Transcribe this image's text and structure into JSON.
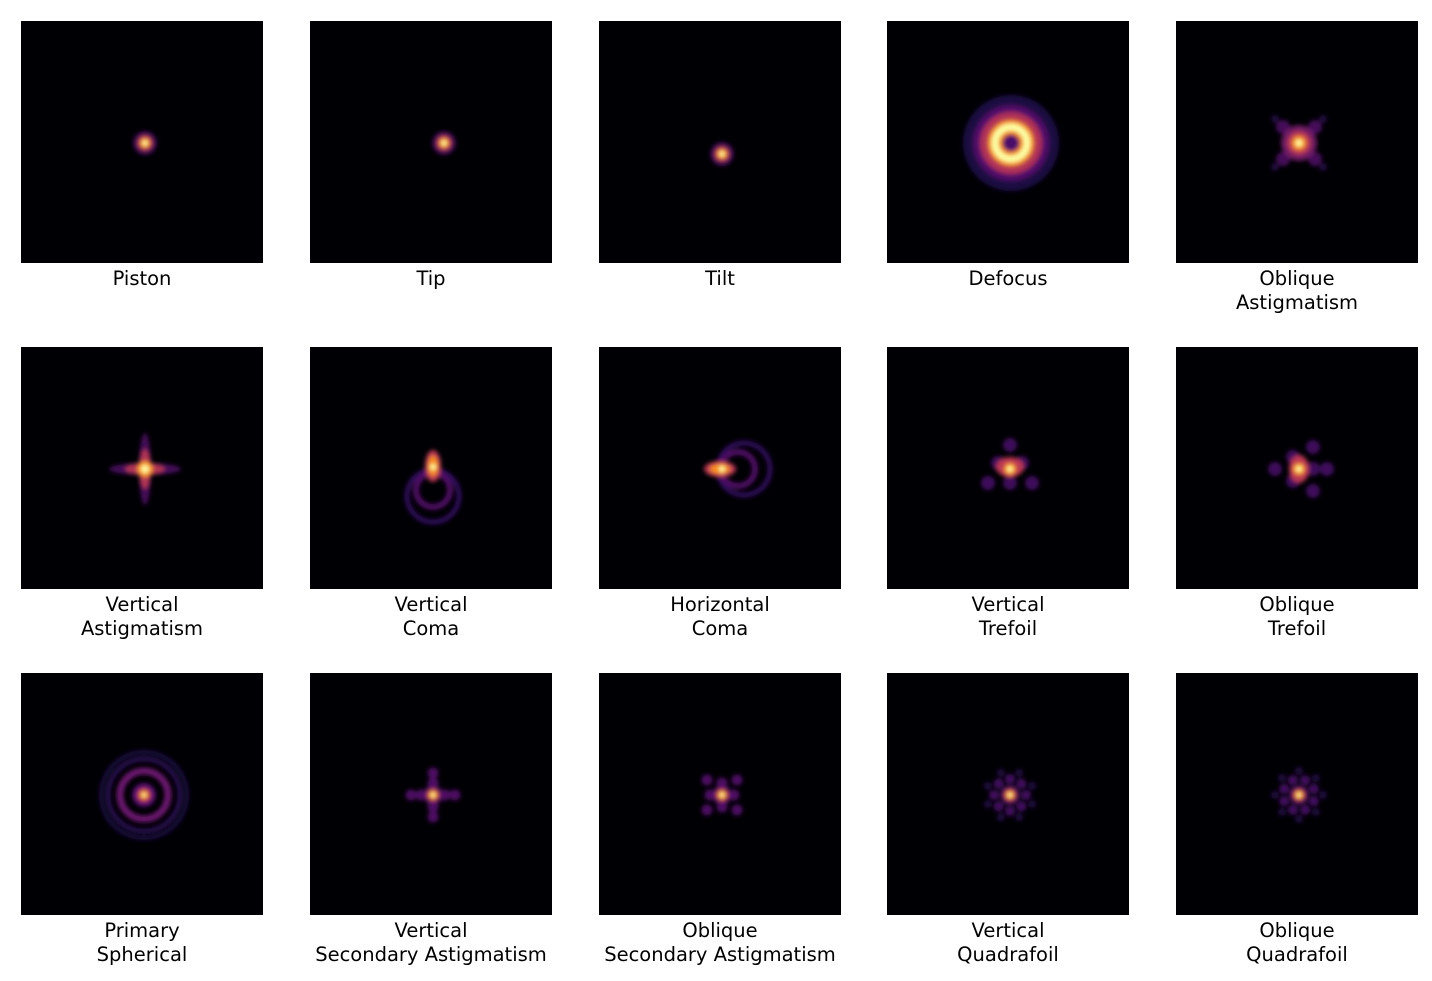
{
  "figure": {
    "colormap": "inferno",
    "background_color": "#000004",
    "panels": [
      {
        "id": "piston",
        "label": [
          "Piston"
        ]
      },
      {
        "id": "tip",
        "label": [
          "Tip"
        ]
      },
      {
        "id": "tilt",
        "label": [
          "Tilt"
        ]
      },
      {
        "id": "defocus",
        "label": [
          "Defocus"
        ]
      },
      {
        "id": "oblique-astigmatism",
        "label": [
          "Oblique",
          "Astigmatism"
        ]
      },
      {
        "id": "vertical-astigmatism",
        "label": [
          "Vertical",
          "Astigmatism"
        ]
      },
      {
        "id": "vertical-coma",
        "label": [
          "Vertical",
          "Coma"
        ]
      },
      {
        "id": "horizontal-coma",
        "label": [
          "Horizontal",
          "Coma"
        ]
      },
      {
        "id": "vertical-trefoil",
        "label": [
          "Vertical",
          "Trefoil"
        ]
      },
      {
        "id": "oblique-trefoil",
        "label": [
          "Oblique",
          "Trefoil"
        ]
      },
      {
        "id": "primary-spherical",
        "label": [
          "Primary",
          "Spherical"
        ]
      },
      {
        "id": "vertical-secondary-astigmatism",
        "label": [
          "Vertical",
          "Secondary Astigmatism"
        ]
      },
      {
        "id": "oblique-secondary-astigmatism",
        "label": [
          "Oblique",
          "Secondary Astigmatism"
        ]
      },
      {
        "id": "vertical-quadrafoil",
        "label": [
          "Vertical",
          "Quadrafoil"
        ]
      },
      {
        "id": "oblique-quadrafoil",
        "label": [
          "Oblique",
          "Quadrafoil"
        ]
      }
    ]
  }
}
